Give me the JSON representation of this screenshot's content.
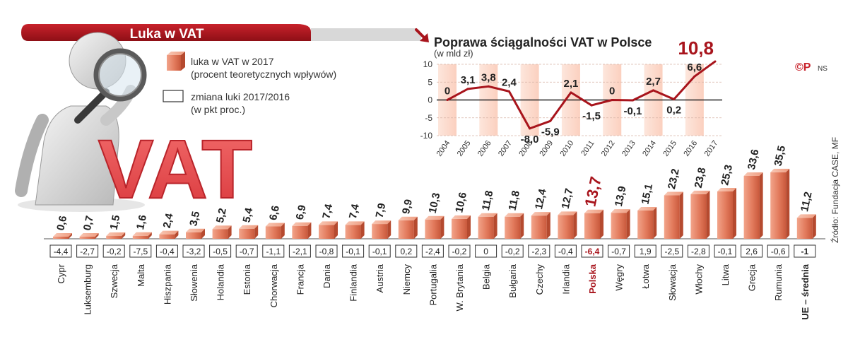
{
  "header": {
    "title": "Luka w VAT",
    "brand_color": "#a8141c"
  },
  "legend": {
    "gap_label_1": "luka w VAT w 2017",
    "gap_label_2": "(procent teoretycznych wpływów)",
    "change_label_1": "zmiana luki 2017/2016",
    "change_label_2": "(w pkt proc.)"
  },
  "illustration": {
    "vat_text": "VAT",
    "icon": "magnifying-glass-figure"
  },
  "badge": {
    "symbols": "©P",
    "author": "NS"
  },
  "source": "Źródło: Fundacja CASE, MF",
  "chart_data": [
    {
      "type": "bar",
      "categories": [
        "Cypr",
        "Luksemburg",
        "Szwecja",
        "Malta",
        "Hiszpania",
        "Słowenia",
        "Holandia",
        "Estonia",
        "Chorwacja",
        "Francja",
        "Dania",
        "Finlandia",
        "Austria",
        "Niemcy",
        "Portugalia",
        "W. Brytania",
        "Belgia",
        "Bułgaria",
        "Czechy",
        "Irlandia",
        "Polska",
        "Węgry",
        "Łotwa",
        "Słowacja",
        "Włochy",
        "Litwa",
        "Grecja",
        "Rumunia",
        "UE – średnia"
      ],
      "value_labels": [
        "0,6",
        "0,7",
        "1,5",
        "1,6",
        "2,4",
        "3,5",
        "5,2",
        "5,4",
        "6,6",
        "6,9",
        "7,4",
        "7,4",
        "7,9",
        "9,9",
        "10,3",
        "10,6",
        "11,8",
        "11,8",
        "12,4",
        "12,7",
        "13,7",
        "13,9",
        "15,1",
        "23,2",
        "23,8",
        "25,3",
        "33,6",
        "35,5",
        "11,2"
      ],
      "series": [
        {
          "values": [
            0.6,
            0.7,
            1.5,
            1.6,
            2.4,
            3.5,
            5.2,
            5.4,
            6.6,
            6.9,
            7.4,
            7.4,
            7.9,
            9.9,
            10.3,
            10.6,
            11.8,
            11.8,
            12.4,
            12.7,
            13.7,
            13.9,
            15.1,
            23.2,
            23.8,
            25.3,
            33.6,
            35.5,
            11.2
          ]
        }
      ],
      "change_labels": [
        "-4,4",
        "-2,7",
        "-0,2",
        "-7,5",
        "-0,4",
        "-3,2",
        "-0,5",
        "-0,7",
        "-1,1",
        "-2,1",
        "-0,8",
        "-0,1",
        "-0,1",
        "0,2",
        "-2,4",
        "-0,2",
        "0",
        "-0,2",
        "-2,3",
        "-0,4",
        "-6,4",
        "-0,7",
        "1,9",
        "-2,5",
        "-2,8",
        "-0,1",
        "2,6",
        "-0,6",
        "-1"
      ],
      "highlight_index": 20,
      "average_index": 28,
      "bar_color": "#e8876a",
      "highlight_color": "#a8141c"
    },
    {
      "type": "line",
      "title": "Poprawa ściągalności VAT w Polsce",
      "ylabel": "(w mld zł)",
      "x": [
        "2004",
        "2005",
        "2006",
        "2007",
        "2008",
        "2009",
        "2010",
        "2011",
        "2012",
        "2013",
        "2014",
        "2015",
        "2016",
        "2017"
      ],
      "series": [
        {
          "values": [
            0,
            3.1,
            3.8,
            2.4,
            -8.0,
            -5.9,
            2.1,
            -1.5,
            0,
            -0.1,
            2.7,
            0.2,
            6.6,
            10.8
          ]
        }
      ],
      "value_labels": [
        "0",
        "3,1",
        "3,8",
        "2,4",
        "-8,0",
        "-5,9",
        "2,1",
        "-1,5",
        "0",
        "-0,1",
        "2,7",
        "0,2",
        "6,6",
        "10,8"
      ],
      "yticks": [
        "10",
        "5",
        "0",
        "-5",
        "-10"
      ],
      "ylim": [
        -10,
        10
      ],
      "line_color": "#a8141c"
    }
  ]
}
